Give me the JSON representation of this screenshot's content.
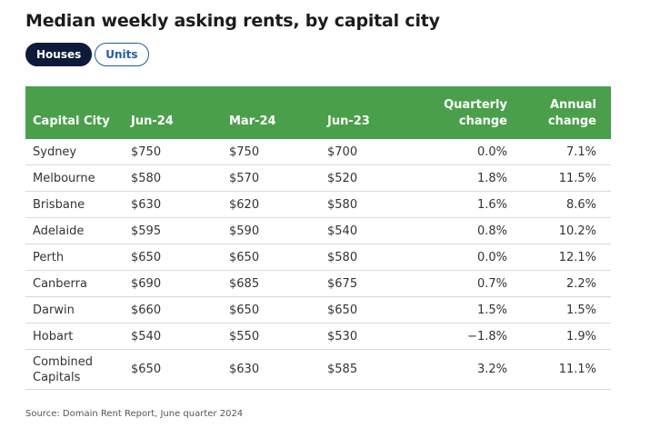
{
  "title": "Median weekly asking rents, by capital city",
  "toggle": {
    "houses": "Houses",
    "units": "Units"
  },
  "table": {
    "headers": [
      "Capital City",
      "Jun-24",
      "Mar-24",
      "Jun-23",
      "Quarterly\nchange",
      "Annual\nchange"
    ],
    "rows": [
      [
        "Sydney",
        "$750",
        "$750",
        "$700",
        "0.0%",
        "7.1%"
      ],
      [
        "Melbourne",
        "$580",
        "$570",
        "$520",
        "1.8%",
        "11.5%"
      ],
      [
        "Brisbane",
        "$630",
        "$620",
        "$580",
        "1.6%",
        "8.6%"
      ],
      [
        "Adelaide",
        "$595",
        "$590",
        "$540",
        "0.8%",
        "10.2%"
      ],
      [
        "Perth",
        "$650",
        "$650",
        "$580",
        "0.0%",
        "12.1%"
      ],
      [
        "Canberra",
        "$690",
        "$685",
        "$675",
        "0.7%",
        "2.2%"
      ],
      [
        "Darwin",
        "$660",
        "$650",
        "$650",
        "1.5%",
        "1.5%"
      ],
      [
        "Hobart",
        "$540",
        "$550",
        "$530",
        "−1.8%",
        "1.9%"
      ],
      [
        "Combined Capitals",
        "$650",
        "$630",
        "$585",
        "3.2%",
        "11.1%"
      ]
    ]
  },
  "colors": {
    "header_bg": "#4aa04a",
    "active_toggle": "#0e1a3a",
    "link_blue": "#1f5d9e"
  },
  "source": "Source: Domain Rent Report, June quarter 2024"
}
